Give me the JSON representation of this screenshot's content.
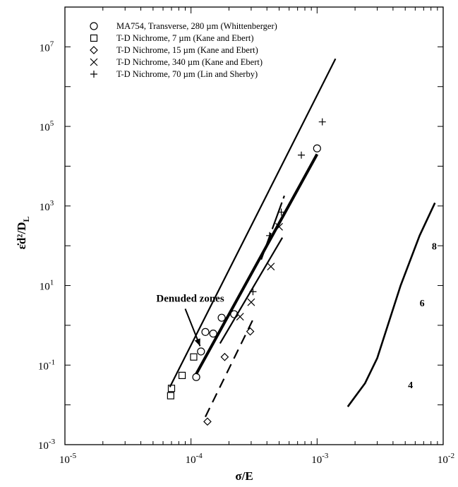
{
  "chart_data": {
    "type": "scatter",
    "x_scale": "log",
    "y_scale": "log",
    "xlabel": "σ/E",
    "ylabel": "ε̇d²/D_L",
    "xlim": [
      1e-05,
      0.01
    ],
    "ylim": [
      0.001,
      100000000.0
    ],
    "x_ticks": [
      {
        "value": 1e-05,
        "base": "10",
        "exp": "-5"
      },
      {
        "value": 0.0001,
        "base": "10",
        "exp": "-4"
      },
      {
        "value": 0.001,
        "base": "10",
        "exp": "-3"
      },
      {
        "value": 0.01,
        "base": "10",
        "exp": "-2"
      }
    ],
    "y_ticks": [
      {
        "value": 0.001,
        "base": "10",
        "exp": "-3"
      },
      {
        "value": 0.1,
        "base": "10",
        "exp": "-1"
      },
      {
        "value": 10.0,
        "base": "10",
        "exp": "1"
      },
      {
        "value": 1000.0,
        "base": "10",
        "exp": "3"
      },
      {
        "value": 100000.0,
        "base": "10",
        "exp": "5"
      },
      {
        "value": 10000000.0,
        "base": "10",
        "exp": "7"
      }
    ],
    "legend_position": "top-left",
    "grid": false,
    "series": [
      {
        "name": "MA754, Transverse, 280 µm (Whittenberger)",
        "marker": "circle",
        "points": [
          [
            0.00011,
            0.05
          ],
          [
            0.00012,
            0.22
          ],
          [
            0.00013,
            0.68
          ],
          [
            0.00015,
            0.62
          ],
          [
            0.000175,
            1.55
          ],
          [
            0.00022,
            1.9
          ],
          [
            0.001,
            28000
          ]
        ]
      },
      {
        "name": "T-D Nichrome, 7 µm (Kane and Ebert)",
        "marker": "square",
        "points": [
          [
            6.9e-05,
            0.017
          ],
          [
            7e-05,
            0.026
          ],
          [
            8.5e-05,
            0.055
          ],
          [
            0.000105,
            0.16
          ]
        ]
      },
      {
        "name": "T-D Nichrome, 15 µm (Kane and Ebert)",
        "marker": "diamond",
        "points": [
          [
            0.000135,
            0.0038
          ],
          [
            0.000185,
            0.16
          ],
          [
            0.000295,
            0.7
          ]
        ]
      },
      {
        "name": "T-D Nichrome, 340 µm (Kane and Ebert)",
        "marker": "cross",
        "points": [
          [
            0.000245,
            1.65
          ],
          [
            0.0003,
            3.8
          ],
          [
            0.00043,
            30
          ],
          [
            0.0005,
            300
          ]
        ]
      },
      {
        "name": "T-D Nichrome, 70 µm (Lin and Sherby)",
        "marker": "plus",
        "points": [
          [
            0.00031,
            7
          ],
          [
            0.00042,
            180
          ],
          [
            0.00052,
            700
          ],
          [
            0.00075,
            19000
          ],
          [
            0.0011,
            130000
          ]
        ]
      }
    ],
    "lines": [
      {
        "style": "solid",
        "width": 4,
        "points": [
          [
            0.00011,
            0.06
          ],
          [
            0.001,
            20000
          ]
        ]
      },
      {
        "style": "solid",
        "width": 2.2,
        "points": [
          [
            6.8e-05,
            0.028
          ],
          [
            0.0014,
            5000000
          ]
        ]
      },
      {
        "style": "solid",
        "width": 2.2,
        "points": [
          [
            0.00017,
            0.35
          ],
          [
            0.00053,
            160
          ]
        ]
      },
      {
        "style": "dashed",
        "width": 2.2,
        "points": [
          [
            0.00013,
            0.005
          ],
          [
            0.00031,
            1.4
          ]
        ]
      },
      {
        "style": "dashed-long",
        "width": 2.2,
        "points": [
          [
            0.00036,
            45
          ],
          [
            0.00055,
            1800
          ]
        ]
      },
      {
        "style": "solid",
        "width": 2.6,
        "points": [
          [
            0.00175,
            0.009
          ],
          [
            0.0024,
            0.035
          ],
          [
            0.003,
            0.15
          ],
          [
            0.0046,
            10
          ],
          [
            0.0065,
            180
          ],
          [
            0.0086,
            1200
          ]
        ]
      }
    ],
    "annotations": [
      {
        "text": "Denuded zones",
        "x": 5.3e-05,
        "y": 3.9
      },
      {
        "text": "4",
        "x": 0.0055,
        "y": 0.026
      },
      {
        "text": "6",
        "x": 0.0068,
        "y": 3.0
      },
      {
        "text": "8",
        "x": 0.0085,
        "y": 80
      }
    ],
    "arrow": {
      "from": [
        9e-05,
        2.6
      ],
      "to": [
        0.000118,
        0.3
      ]
    }
  }
}
